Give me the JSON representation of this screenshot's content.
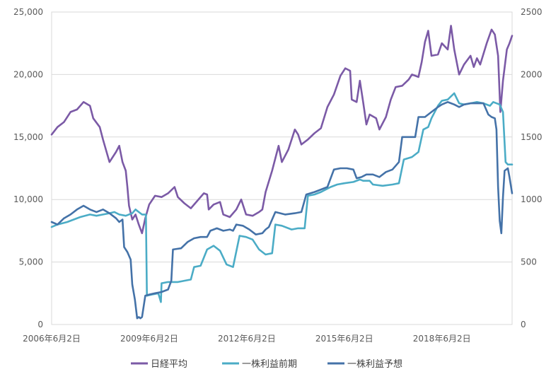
{
  "chart_data": {
    "type": "line",
    "title": "",
    "xlabel": "",
    "ylabel": "",
    "y_left": {
      "range": [
        0,
        25000
      ],
      "ticks": [
        "0",
        "5,000",
        "10,000",
        "15,000",
        "20,000",
        "25,000"
      ]
    },
    "y_right": {
      "range": [
        0,
        2500
      ],
      "ticks": [
        "0",
        "500",
        "1000",
        "1500",
        "2000",
        "2500"
      ]
    },
    "x_range": [
      2006.42,
      2020.58
    ],
    "x_ticks": [
      {
        "x": 2006.42,
        "label": "2006年6月2日"
      },
      {
        "x": 2009.42,
        "label": "2009年6月2日"
      },
      {
        "x": 2012.42,
        "label": "2012年6月2日"
      },
      {
        "x": 2015.42,
        "label": "2015年6月2日"
      },
      {
        "x": 2018.42,
        "label": "2018年6月2日"
      }
    ],
    "grid": true,
    "legend": "bottom",
    "series": [
      {
        "name": "日経平均",
        "axis": "left",
        "color": "#7b5aa6",
        "points": [
          [
            2006.42,
            15200
          ],
          [
            2006.6,
            15800
          ],
          [
            2006.8,
            16200
          ],
          [
            2007.0,
            17000
          ],
          [
            2007.2,
            17200
          ],
          [
            2007.4,
            17800
          ],
          [
            2007.6,
            17500
          ],
          [
            2007.7,
            16500
          ],
          [
            2007.9,
            15800
          ],
          [
            2008.0,
            14800
          ],
          [
            2008.2,
            13000
          ],
          [
            2008.4,
            13800
          ],
          [
            2008.5,
            14300
          ],
          [
            2008.6,
            13000
          ],
          [
            2008.7,
            12300
          ],
          [
            2008.75,
            11000
          ],
          [
            2008.8,
            9500
          ],
          [
            2008.9,
            8400
          ],
          [
            2009.0,
            8800
          ],
          [
            2009.1,
            8000
          ],
          [
            2009.2,
            7300
          ],
          [
            2009.3,
            8500
          ],
          [
            2009.42,
            9600
          ],
          [
            2009.6,
            10300
          ],
          [
            2009.8,
            10200
          ],
          [
            2010.0,
            10500
          ],
          [
            2010.2,
            11000
          ],
          [
            2010.3,
            10200
          ],
          [
            2010.5,
            9700
          ],
          [
            2010.7,
            9300
          ],
          [
            2010.9,
            9900
          ],
          [
            2011.1,
            10500
          ],
          [
            2011.2,
            10400
          ],
          [
            2011.25,
            9200
          ],
          [
            2011.4,
            9600
          ],
          [
            2011.6,
            9800
          ],
          [
            2011.7,
            8800
          ],
          [
            2011.9,
            8600
          ],
          [
            2012.1,
            9200
          ],
          [
            2012.25,
            10000
          ],
          [
            2012.4,
            8800
          ],
          [
            2012.6,
            8700
          ],
          [
            2012.8,
            9000
          ],
          [
            2012.9,
            9200
          ],
          [
            2013.0,
            10600
          ],
          [
            2013.2,
            12300
          ],
          [
            2013.4,
            14300
          ],
          [
            2013.5,
            13000
          ],
          [
            2013.7,
            14000
          ],
          [
            2013.9,
            15600
          ],
          [
            2014.0,
            15200
          ],
          [
            2014.1,
            14400
          ],
          [
            2014.3,
            14800
          ],
          [
            2014.5,
            15300
          ],
          [
            2014.7,
            15700
          ],
          [
            2014.9,
            17400
          ],
          [
            2015.1,
            18400
          ],
          [
            2015.3,
            19900
          ],
          [
            2015.45,
            20500
          ],
          [
            2015.6,
            20300
          ],
          [
            2015.65,
            18000
          ],
          [
            2015.8,
            17800
          ],
          [
            2015.9,
            19500
          ],
          [
            2016.0,
            17800
          ],
          [
            2016.1,
            16000
          ],
          [
            2016.2,
            16800
          ],
          [
            2016.4,
            16500
          ],
          [
            2016.5,
            15600
          ],
          [
            2016.7,
            16600
          ],
          [
            2016.85,
            18000
          ],
          [
            2017.0,
            19000
          ],
          [
            2017.2,
            19100
          ],
          [
            2017.4,
            19600
          ],
          [
            2017.5,
            20000
          ],
          [
            2017.7,
            19800
          ],
          [
            2017.8,
            21000
          ],
          [
            2017.9,
            22600
          ],
          [
            2018.0,
            23500
          ],
          [
            2018.1,
            21500
          ],
          [
            2018.3,
            21600
          ],
          [
            2018.42,
            22500
          ],
          [
            2018.6,
            22000
          ],
          [
            2018.7,
            23900
          ],
          [
            2018.8,
            22000
          ],
          [
            2018.95,
            20000
          ],
          [
            2019.1,
            20800
          ],
          [
            2019.3,
            21500
          ],
          [
            2019.4,
            20600
          ],
          [
            2019.5,
            21300
          ],
          [
            2019.6,
            20800
          ],
          [
            2019.8,
            22500
          ],
          [
            2019.95,
            23600
          ],
          [
            2020.05,
            23200
          ],
          [
            2020.15,
            21500
          ],
          [
            2020.22,
            17000
          ],
          [
            2020.3,
            19500
          ],
          [
            2020.42,
            22000
          ],
          [
            2020.5,
            22500
          ],
          [
            2020.58,
            23100
          ]
        ]
      },
      {
        "name": "一株利益前期",
        "axis": "right",
        "color": "#4bacc6",
        "points": [
          [
            2006.42,
            780
          ],
          [
            2006.6,
            800
          ],
          [
            2006.9,
            820
          ],
          [
            2007.1,
            840
          ],
          [
            2007.3,
            860
          ],
          [
            2007.6,
            880
          ],
          [
            2007.8,
            870
          ],
          [
            2008.0,
            880
          ],
          [
            2008.2,
            890
          ],
          [
            2008.35,
            900
          ],
          [
            2008.5,
            880
          ],
          [
            2008.7,
            870
          ],
          [
            2008.9,
            890
          ],
          [
            2009.0,
            920
          ],
          [
            2009.1,
            900
          ],
          [
            2009.2,
            880
          ],
          [
            2009.32,
            880
          ],
          [
            2009.35,
            230
          ],
          [
            2009.5,
            240
          ],
          [
            2009.7,
            250
          ],
          [
            2009.78,
            180
          ],
          [
            2009.8,
            330
          ],
          [
            2010.0,
            340
          ],
          [
            2010.3,
            340
          ],
          [
            2010.5,
            350
          ],
          [
            2010.7,
            360
          ],
          [
            2010.8,
            460
          ],
          [
            2011.0,
            470
          ],
          [
            2011.2,
            600
          ],
          [
            2011.4,
            630
          ],
          [
            2011.6,
            590
          ],
          [
            2011.8,
            480
          ],
          [
            2012.0,
            460
          ],
          [
            2012.2,
            710
          ],
          [
            2012.4,
            700
          ],
          [
            2012.6,
            680
          ],
          [
            2012.8,
            600
          ],
          [
            2013.0,
            560
          ],
          [
            2013.2,
            570
          ],
          [
            2013.3,
            800
          ],
          [
            2013.5,
            790
          ],
          [
            2013.8,
            760
          ],
          [
            2014.0,
            770
          ],
          [
            2014.2,
            770
          ],
          [
            2014.3,
            1030
          ],
          [
            2014.5,
            1040
          ],
          [
            2014.7,
            1060
          ],
          [
            2015.0,
            1100
          ],
          [
            2015.2,
            1120
          ],
          [
            2015.42,
            1130
          ],
          [
            2015.7,
            1140
          ],
          [
            2015.9,
            1160
          ],
          [
            2016.0,
            1150
          ],
          [
            2016.2,
            1150
          ],
          [
            2016.3,
            1120
          ],
          [
            2016.6,
            1110
          ],
          [
            2016.9,
            1120
          ],
          [
            2017.1,
            1130
          ],
          [
            2017.25,
            1320
          ],
          [
            2017.5,
            1340
          ],
          [
            2017.7,
            1380
          ],
          [
            2017.85,
            1560
          ],
          [
            2018.0,
            1580
          ],
          [
            2018.1,
            1650
          ],
          [
            2018.3,
            1750
          ],
          [
            2018.42,
            1790
          ],
          [
            2018.6,
            1800
          ],
          [
            2018.8,
            1850
          ],
          [
            2018.95,
            1770
          ],
          [
            2019.1,
            1760
          ],
          [
            2019.3,
            1770
          ],
          [
            2019.5,
            1780
          ],
          [
            2019.7,
            1770
          ],
          [
            2019.9,
            1750
          ],
          [
            2020.0,
            1780
          ],
          [
            2020.1,
            1770
          ],
          [
            2020.2,
            1760
          ],
          [
            2020.3,
            1700
          ],
          [
            2020.38,
            1300
          ],
          [
            2020.45,
            1280
          ],
          [
            2020.58,
            1280
          ]
        ]
      },
      {
        "name": "一株利益予想",
        "axis": "right",
        "color": "#4472a8",
        "points": [
          [
            2006.42,
            820
          ],
          [
            2006.6,
            800
          ],
          [
            2006.8,
            850
          ],
          [
            2007.0,
            880
          ],
          [
            2007.2,
            920
          ],
          [
            2007.4,
            950
          ],
          [
            2007.6,
            920
          ],
          [
            2007.8,
            900
          ],
          [
            2008.0,
            920
          ],
          [
            2008.2,
            890
          ],
          [
            2008.3,
            870
          ],
          [
            2008.4,
            850
          ],
          [
            2008.5,
            820
          ],
          [
            2008.6,
            840
          ],
          [
            2008.65,
            620
          ],
          [
            2008.75,
            580
          ],
          [
            2008.85,
            520
          ],
          [
            2008.9,
            320
          ],
          [
            2008.98,
            200
          ],
          [
            2009.05,
            50
          ],
          [
            2009.1,
            60
          ],
          [
            2009.15,
            50
          ],
          [
            2009.2,
            60
          ],
          [
            2009.3,
            230
          ],
          [
            2009.42,
            240
          ],
          [
            2009.6,
            250
          ],
          [
            2009.8,
            260
          ],
          [
            2010.0,
            280
          ],
          [
            2010.1,
            350
          ],
          [
            2010.15,
            600
          ],
          [
            2010.4,
            610
          ],
          [
            2010.6,
            660
          ],
          [
            2010.8,
            690
          ],
          [
            2011.0,
            700
          ],
          [
            2011.2,
            700
          ],
          [
            2011.3,
            750
          ],
          [
            2011.5,
            770
          ],
          [
            2011.7,
            750
          ],
          [
            2011.9,
            760
          ],
          [
            2012.0,
            750
          ],
          [
            2012.1,
            800
          ],
          [
            2012.3,
            790
          ],
          [
            2012.5,
            760
          ],
          [
            2012.7,
            720
          ],
          [
            2012.9,
            730
          ],
          [
            2013.0,
            760
          ],
          [
            2013.1,
            780
          ],
          [
            2013.3,
            900
          ],
          [
            2013.6,
            880
          ],
          [
            2013.9,
            890
          ],
          [
            2014.1,
            900
          ],
          [
            2014.25,
            1040
          ],
          [
            2014.5,
            1060
          ],
          [
            2014.7,
            1080
          ],
          [
            2014.9,
            1100
          ],
          [
            2015.1,
            1240
          ],
          [
            2015.3,
            1250
          ],
          [
            2015.5,
            1250
          ],
          [
            2015.7,
            1240
          ],
          [
            2015.8,
            1170
          ],
          [
            2015.95,
            1180
          ],
          [
            2016.1,
            1200
          ],
          [
            2016.3,
            1200
          ],
          [
            2016.5,
            1180
          ],
          [
            2016.7,
            1220
          ],
          [
            2016.9,
            1240
          ],
          [
            2017.1,
            1300
          ],
          [
            2017.2,
            1500
          ],
          [
            2017.4,
            1500
          ],
          [
            2017.6,
            1500
          ],
          [
            2017.7,
            1660
          ],
          [
            2017.9,
            1660
          ],
          [
            2018.1,
            1700
          ],
          [
            2018.3,
            1740
          ],
          [
            2018.42,
            1760
          ],
          [
            2018.6,
            1780
          ],
          [
            2018.8,
            1760
          ],
          [
            2018.95,
            1740
          ],
          [
            2019.1,
            1760
          ],
          [
            2019.3,
            1770
          ],
          [
            2019.5,
            1770
          ],
          [
            2019.7,
            1770
          ],
          [
            2019.85,
            1680
          ],
          [
            2019.95,
            1660
          ],
          [
            2020.05,
            1650
          ],
          [
            2020.1,
            1560
          ],
          [
            2020.15,
            1100
          ],
          [
            2020.2,
            830
          ],
          [
            2020.25,
            730
          ],
          [
            2020.3,
            1020
          ],
          [
            2020.35,
            1230
          ],
          [
            2020.45,
            1250
          ],
          [
            2020.5,
            1180
          ],
          [
            2020.58,
            1050
          ]
        ]
      }
    ]
  }
}
